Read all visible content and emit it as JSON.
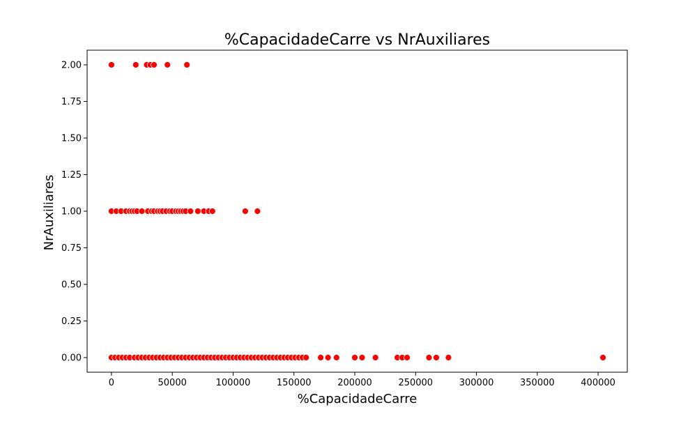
{
  "chart_data": {
    "type": "scatter",
    "title": "%CapacidadeCarre vs NrAuxiliares",
    "xlabel": "%CapacidadeCarre",
    "ylabel": "NrAuxiliares",
    "xlim": [
      -20000,
      424000
    ],
    "ylim": [
      -0.1,
      2.1
    ],
    "xticks": [
      0,
      50000,
      100000,
      150000,
      200000,
      250000,
      300000,
      350000,
      400000
    ],
    "xtick_labels": [
      "0",
      "50000",
      "100000",
      "150000",
      "200000",
      "250000",
      "300000",
      "350000",
      "400000"
    ],
    "yticks": [
      0,
      0.25,
      0.5,
      0.75,
      1,
      1.25,
      1.5,
      1.75,
      2
    ],
    "ytick_labels": [
      "0.00",
      "0.25",
      "0.50",
      "0.75",
      "1.00",
      "1.25",
      "1.50",
      "1.75",
      "2.00"
    ],
    "grid": false,
    "marker_color": "#ff0000",
    "marker_edge_color": "#ffffff",
    "series": [
      {
        "points": [
          {
            "x": 0,
            "y": 2
          },
          {
            "x": 20000,
            "y": 2
          },
          {
            "x": 29000,
            "y": 2
          },
          {
            "x": 32000,
            "y": 2
          },
          {
            "x": 35000,
            "y": 2
          },
          {
            "x": 46000,
            "y": 2
          },
          {
            "x": 62000,
            "y": 2
          },
          {
            "x": 0,
            "y": 1
          },
          {
            "x": 4000,
            "y": 1
          },
          {
            "x": 8000,
            "y": 1
          },
          {
            "x": 12000,
            "y": 1
          },
          {
            "x": 15000,
            "y": 1
          },
          {
            "x": 17000,
            "y": 1
          },
          {
            "x": 19000,
            "y": 1
          },
          {
            "x": 21000,
            "y": 1
          },
          {
            "x": 25000,
            "y": 1
          },
          {
            "x": 30000,
            "y": 1
          },
          {
            "x": 33000,
            "y": 1
          },
          {
            "x": 35000,
            "y": 1
          },
          {
            "x": 38000,
            "y": 1
          },
          {
            "x": 40000,
            "y": 1
          },
          {
            "x": 42000,
            "y": 1
          },
          {
            "x": 45000,
            "y": 1
          },
          {
            "x": 48000,
            "y": 1
          },
          {
            "x": 50000,
            "y": 1
          },
          {
            "x": 53000,
            "y": 1
          },
          {
            "x": 55000,
            "y": 1
          },
          {
            "x": 57000,
            "y": 1
          },
          {
            "x": 59000,
            "y": 1
          },
          {
            "x": 61000,
            "y": 1
          },
          {
            "x": 65000,
            "y": 1
          },
          {
            "x": 71000,
            "y": 1
          },
          {
            "x": 76000,
            "y": 1
          },
          {
            "x": 80000,
            "y": 1
          },
          {
            "x": 83000,
            "y": 1
          },
          {
            "x": 110000,
            "y": 1
          },
          {
            "x": 120000,
            "y": 1
          },
          {
            "x": 0,
            "y": 0
          },
          {
            "x": 3000,
            "y": 0
          },
          {
            "x": 6000,
            "y": 0
          },
          {
            "x": 9000,
            "y": 0
          },
          {
            "x": 12000,
            "y": 0
          },
          {
            "x": 15000,
            "y": 0
          },
          {
            "x": 19000,
            "y": 0
          },
          {
            "x": 22000,
            "y": 0
          },
          {
            "x": 25000,
            "y": 0
          },
          {
            "x": 28000,
            "y": 0
          },
          {
            "x": 31000,
            "y": 0
          },
          {
            "x": 34000,
            "y": 0
          },
          {
            "x": 37000,
            "y": 0
          },
          {
            "x": 40000,
            "y": 0
          },
          {
            "x": 43000,
            "y": 0
          },
          {
            "x": 46000,
            "y": 0
          },
          {
            "x": 49000,
            "y": 0
          },
          {
            "x": 52000,
            "y": 0
          },
          {
            "x": 55000,
            "y": 0
          },
          {
            "x": 58000,
            "y": 0
          },
          {
            "x": 61000,
            "y": 0
          },
          {
            "x": 64000,
            "y": 0
          },
          {
            "x": 67000,
            "y": 0
          },
          {
            "x": 70000,
            "y": 0
          },
          {
            "x": 73000,
            "y": 0
          },
          {
            "x": 76000,
            "y": 0
          },
          {
            "x": 79000,
            "y": 0
          },
          {
            "x": 82000,
            "y": 0
          },
          {
            "x": 85000,
            "y": 0
          },
          {
            "x": 88000,
            "y": 0
          },
          {
            "x": 91000,
            "y": 0
          },
          {
            "x": 94000,
            "y": 0
          },
          {
            "x": 97000,
            "y": 0
          },
          {
            "x": 100000,
            "y": 0
          },
          {
            "x": 103000,
            "y": 0
          },
          {
            "x": 106000,
            "y": 0
          },
          {
            "x": 109000,
            "y": 0
          },
          {
            "x": 112000,
            "y": 0
          },
          {
            "x": 115000,
            "y": 0
          },
          {
            "x": 118000,
            "y": 0
          },
          {
            "x": 121000,
            "y": 0
          },
          {
            "x": 124000,
            "y": 0
          },
          {
            "x": 127000,
            "y": 0
          },
          {
            "x": 130000,
            "y": 0
          },
          {
            "x": 133000,
            "y": 0
          },
          {
            "x": 136000,
            "y": 0
          },
          {
            "x": 139000,
            "y": 0
          },
          {
            "x": 142000,
            "y": 0
          },
          {
            "x": 145000,
            "y": 0
          },
          {
            "x": 148000,
            "y": 0
          },
          {
            "x": 151000,
            "y": 0
          },
          {
            "x": 154000,
            "y": 0
          },
          {
            "x": 157000,
            "y": 0
          },
          {
            "x": 160000,
            "y": 0
          },
          {
            "x": 172000,
            "y": 0
          },
          {
            "x": 178000,
            "y": 0
          },
          {
            "x": 185000,
            "y": 0
          },
          {
            "x": 200000,
            "y": 0
          },
          {
            "x": 206000,
            "y": 0
          },
          {
            "x": 217000,
            "y": 0
          },
          {
            "x": 235000,
            "y": 0
          },
          {
            "x": 239000,
            "y": 0
          },
          {
            "x": 243000,
            "y": 0
          },
          {
            "x": 261000,
            "y": 0
          },
          {
            "x": 267000,
            "y": 0
          },
          {
            "x": 277000,
            "y": 0
          },
          {
            "x": 404000,
            "y": 0
          }
        ]
      }
    ]
  }
}
